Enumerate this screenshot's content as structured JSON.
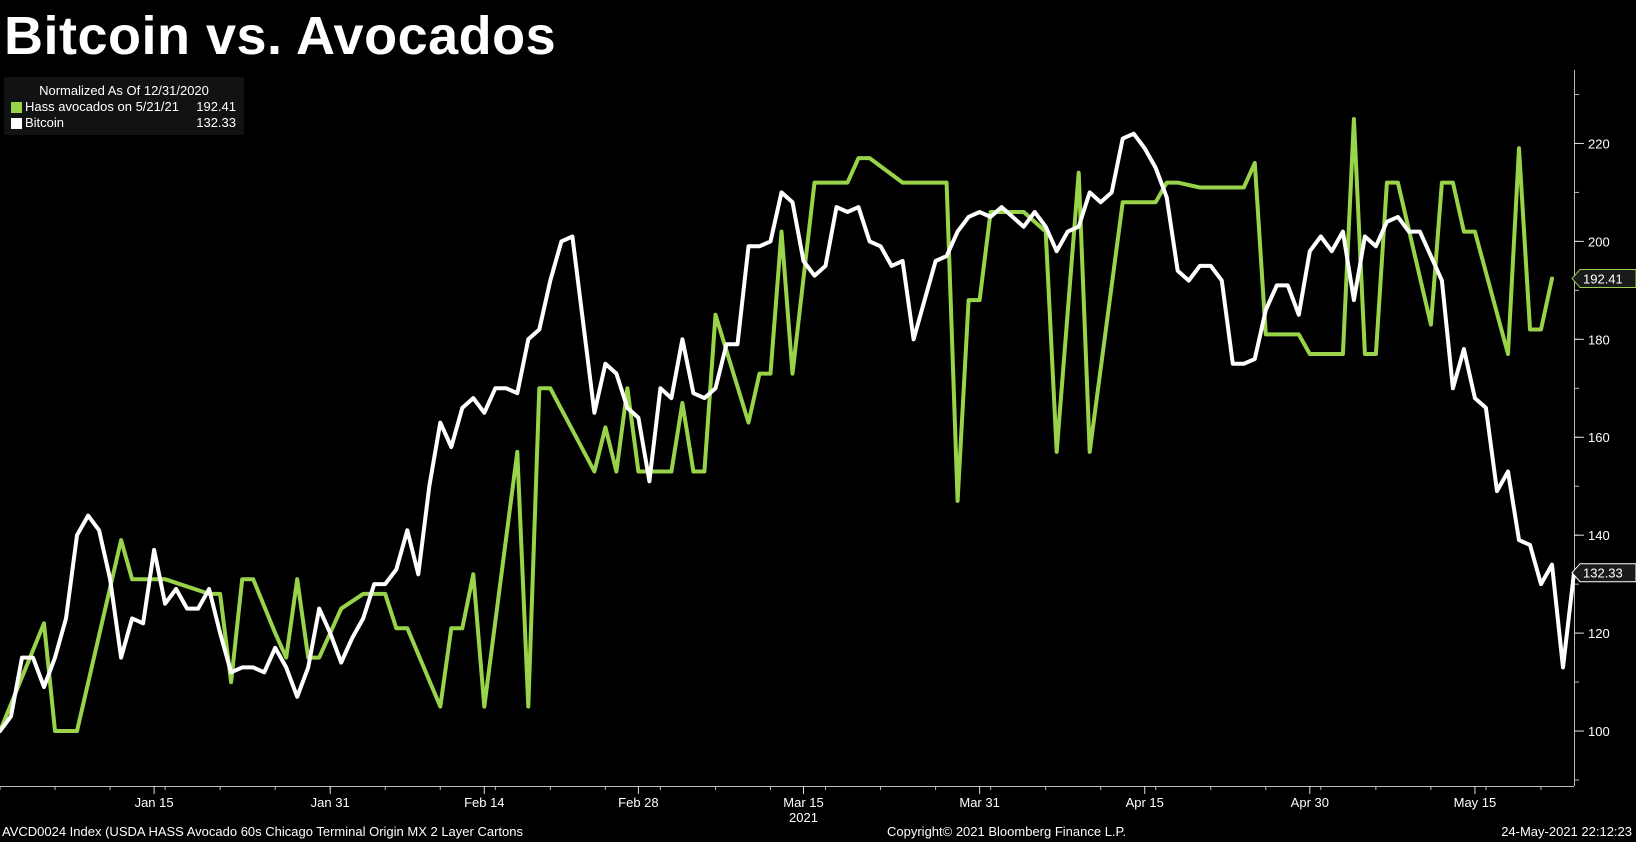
{
  "title": "Bitcoin vs. Avocados",
  "legend": {
    "header": "Normalized As Of 12/31/2020",
    "items": [
      {
        "name": "Hass avocados on 5/21/21",
        "value": "192.41",
        "color": "#98d34a"
      },
      {
        "name": "Bitcoin",
        "value": "132.33",
        "color": "#ffffff"
      }
    ]
  },
  "footer": {
    "source": "AVCD0024 Index (USDA HASS Avocado 60s Chicago Terminal Origin MX 2 Layer Cartons",
    "copyright": "Copyright© 2021 Bloomberg Finance L.P.",
    "timestamp": "24-May-2021 22:12:23"
  },
  "chart_data": {
    "type": "line",
    "xlim": [
      "2021-01-01",
      "2021-05-24"
    ],
    "ylim": [
      90,
      235
    ],
    "yticks": [
      100,
      120,
      140,
      160,
      180,
      200,
      220
    ],
    "xticks": [
      {
        "date": "2021-01-15",
        "label": "Jan 15"
      },
      {
        "date": "2021-01-31",
        "label": "Jan 31"
      },
      {
        "date": "2021-02-14",
        "label": "Feb 14"
      },
      {
        "date": "2021-02-28",
        "label": "Feb 28"
      },
      {
        "date": "2021-03-15",
        "label": "Mar 15"
      },
      {
        "date": "2021-03-31",
        "label": "Mar 31"
      },
      {
        "date": "2021-04-15",
        "label": "Apr 15"
      },
      {
        "date": "2021-04-30",
        "label": "Apr 30"
      },
      {
        "date": "2021-05-15",
        "label": "May 15"
      }
    ],
    "year_label": {
      "date": "2021-03-15",
      "label": "2021"
    },
    "series": [
      {
        "name": "Hass avocados on 5/21/21",
        "color": "#98d34a",
        "last_value": "192.41",
        "points": [
          [
            "2021-01-01",
            100
          ],
          [
            "2021-01-05",
            122
          ],
          [
            "2021-01-06",
            100
          ],
          [
            "2021-01-08",
            100
          ],
          [
            "2021-01-12",
            139
          ],
          [
            "2021-01-13",
            131
          ],
          [
            "2021-01-16",
            131
          ],
          [
            "2021-01-20",
            128
          ],
          [
            "2021-01-21",
            128
          ],
          [
            "2021-01-22",
            110
          ],
          [
            "2021-01-23",
            131
          ],
          [
            "2021-01-24",
            131
          ],
          [
            "2021-01-26",
            120
          ],
          [
            "2021-01-27",
            115
          ],
          [
            "2021-01-28",
            131
          ],
          [
            "2021-01-29",
            115
          ],
          [
            "2021-01-30",
            115
          ],
          [
            "2021-02-01",
            125
          ],
          [
            "2021-02-03",
            128
          ],
          [
            "2021-02-05",
            128
          ],
          [
            "2021-02-06",
            121
          ],
          [
            "2021-02-07",
            121
          ],
          [
            "2021-02-10",
            105
          ],
          [
            "2021-02-11",
            121
          ],
          [
            "2021-02-12",
            121
          ],
          [
            "2021-02-13",
            132
          ],
          [
            "2021-02-14",
            105
          ],
          [
            "2021-02-17",
            157
          ],
          [
            "2021-02-18",
            105
          ],
          [
            "2021-02-19",
            170
          ],
          [
            "2021-02-20",
            170
          ],
          [
            "2021-02-24",
            153
          ],
          [
            "2021-02-25",
            162
          ],
          [
            "2021-02-26",
            153
          ],
          [
            "2021-02-27",
            170
          ],
          [
            "2021-02-28",
            153
          ],
          [
            "2021-03-03",
            153
          ],
          [
            "2021-03-04",
            167
          ],
          [
            "2021-03-05",
            153
          ],
          [
            "2021-03-06",
            153
          ],
          [
            "2021-03-07",
            185
          ],
          [
            "2021-03-10",
            163
          ],
          [
            "2021-03-11",
            173
          ],
          [
            "2021-03-12",
            173
          ],
          [
            "2021-03-13",
            202
          ],
          [
            "2021-03-14",
            173
          ],
          [
            "2021-03-16",
            212
          ],
          [
            "2021-03-19",
            212
          ],
          [
            "2021-03-20",
            217
          ],
          [
            "2021-03-21",
            217
          ],
          [
            "2021-03-24",
            212
          ],
          [
            "2021-03-28",
            212
          ],
          [
            "2021-03-29",
            147
          ],
          [
            "2021-03-30",
            188
          ],
          [
            "2021-03-31",
            188
          ],
          [
            "2021-04-01",
            206
          ],
          [
            "2021-04-04",
            206
          ],
          [
            "2021-04-06",
            202
          ],
          [
            "2021-04-07",
            157
          ],
          [
            "2021-04-09",
            214
          ],
          [
            "2021-04-10",
            157
          ],
          [
            "2021-04-13",
            208
          ],
          [
            "2021-04-16",
            208
          ],
          [
            "2021-04-17",
            212
          ],
          [
            "2021-04-18",
            212
          ],
          [
            "2021-04-20",
            211
          ],
          [
            "2021-04-24",
            211
          ],
          [
            "2021-04-25",
            216
          ],
          [
            "2021-04-26",
            181
          ],
          [
            "2021-04-29",
            181
          ],
          [
            "2021-04-30",
            177
          ],
          [
            "2021-05-03",
            177
          ],
          [
            "2021-05-04",
            225
          ],
          [
            "2021-05-05",
            177
          ],
          [
            "2021-05-06",
            177
          ],
          [
            "2021-05-07",
            212
          ],
          [
            "2021-05-08",
            212
          ],
          [
            "2021-05-11",
            183
          ],
          [
            "2021-05-12",
            212
          ],
          [
            "2021-05-13",
            212
          ],
          [
            "2021-05-14",
            202
          ],
          [
            "2021-05-15",
            202
          ],
          [
            "2021-05-18",
            177
          ],
          [
            "2021-05-19",
            219
          ],
          [
            "2021-05-20",
            182
          ],
          [
            "2021-05-21",
            182
          ],
          [
            "2021-05-22",
            192.41
          ]
        ]
      },
      {
        "name": "Bitcoin",
        "color": "#ffffff",
        "last_value": "132.33",
        "points": [
          [
            "2021-01-01",
            100
          ],
          [
            "2021-01-02",
            103
          ],
          [
            "2021-01-03",
            115
          ],
          [
            "2021-01-04",
            115
          ],
          [
            "2021-01-05",
            109
          ],
          [
            "2021-01-06",
            115
          ],
          [
            "2021-01-07",
            123
          ],
          [
            "2021-01-08",
            140
          ],
          [
            "2021-01-09",
            144
          ],
          [
            "2021-01-10",
            141
          ],
          [
            "2021-01-11",
            131
          ],
          [
            "2021-01-12",
            115
          ],
          [
            "2021-01-13",
            123
          ],
          [
            "2021-01-14",
            122
          ],
          [
            "2021-01-15",
            137
          ],
          [
            "2021-01-16",
            126
          ],
          [
            "2021-01-17",
            129
          ],
          [
            "2021-01-18",
            125
          ],
          [
            "2021-01-19",
            125
          ],
          [
            "2021-01-20",
            129
          ],
          [
            "2021-01-21",
            120
          ],
          [
            "2021-01-22",
            112
          ],
          [
            "2021-01-23",
            113
          ],
          [
            "2021-01-24",
            113
          ],
          [
            "2021-01-25",
            112
          ],
          [
            "2021-01-26",
            117
          ],
          [
            "2021-01-27",
            113
          ],
          [
            "2021-01-28",
            107
          ],
          [
            "2021-01-29",
            113
          ],
          [
            "2021-01-30",
            125
          ],
          [
            "2021-01-31",
            120
          ],
          [
            "2021-02-01",
            114
          ],
          [
            "2021-02-02",
            119
          ],
          [
            "2021-02-03",
            123
          ],
          [
            "2021-02-04",
            130
          ],
          [
            "2021-02-05",
            130
          ],
          [
            "2021-02-06",
            133
          ],
          [
            "2021-02-07",
            141
          ],
          [
            "2021-02-08",
            132
          ],
          [
            "2021-02-09",
            150
          ],
          [
            "2021-02-10",
            163
          ],
          [
            "2021-02-11",
            158
          ],
          [
            "2021-02-12",
            166
          ],
          [
            "2021-02-13",
            168
          ],
          [
            "2021-02-14",
            165
          ],
          [
            "2021-02-15",
            170
          ],
          [
            "2021-02-16",
            170
          ],
          [
            "2021-02-17",
            169
          ],
          [
            "2021-02-18",
            180
          ],
          [
            "2021-02-19",
            182
          ],
          [
            "2021-02-20",
            192
          ],
          [
            "2021-02-21",
            200
          ],
          [
            "2021-02-22",
            201
          ],
          [
            "2021-02-23",
            183
          ],
          [
            "2021-02-24",
            165
          ],
          [
            "2021-02-25",
            175
          ],
          [
            "2021-02-26",
            173
          ],
          [
            "2021-02-27",
            166
          ],
          [
            "2021-02-28",
            164
          ],
          [
            "2021-03-01",
            151
          ],
          [
            "2021-03-02",
            170
          ],
          [
            "2021-03-03",
            168
          ],
          [
            "2021-03-04",
            180
          ],
          [
            "2021-03-05",
            169
          ],
          [
            "2021-03-06",
            168
          ],
          [
            "2021-03-07",
            170
          ],
          [
            "2021-03-08",
            179
          ],
          [
            "2021-03-09",
            179
          ],
          [
            "2021-03-10",
            199
          ],
          [
            "2021-03-11",
            199
          ],
          [
            "2021-03-12",
            200
          ],
          [
            "2021-03-13",
            210
          ],
          [
            "2021-03-14",
            208
          ],
          [
            "2021-03-15",
            196
          ],
          [
            "2021-03-16",
            193
          ],
          [
            "2021-03-17",
            195
          ],
          [
            "2021-03-18",
            207
          ],
          [
            "2021-03-19",
            206
          ],
          [
            "2021-03-20",
            207
          ],
          [
            "2021-03-21",
            200
          ],
          [
            "2021-03-22",
            199
          ],
          [
            "2021-03-23",
            195
          ],
          [
            "2021-03-24",
            196
          ],
          [
            "2021-03-25",
            180
          ],
          [
            "2021-03-26",
            188
          ],
          [
            "2021-03-27",
            196
          ],
          [
            "2021-03-28",
            197
          ],
          [
            "2021-03-29",
            202
          ],
          [
            "2021-03-30",
            205
          ],
          [
            "2021-03-31",
            206
          ],
          [
            "2021-04-01",
            205
          ],
          [
            "2021-04-02",
            207
          ],
          [
            "2021-04-03",
            205
          ],
          [
            "2021-04-04",
            203
          ],
          [
            "2021-04-05",
            206
          ],
          [
            "2021-04-06",
            203
          ],
          [
            "2021-04-07",
            198
          ],
          [
            "2021-04-08",
            202
          ],
          [
            "2021-04-09",
            203
          ],
          [
            "2021-04-10",
            210
          ],
          [
            "2021-04-11",
            208
          ],
          [
            "2021-04-12",
            210
          ],
          [
            "2021-04-13",
            221
          ],
          [
            "2021-04-14",
            222
          ],
          [
            "2021-04-15",
            219
          ],
          [
            "2021-04-16",
            215
          ],
          [
            "2021-04-17",
            209
          ],
          [
            "2021-04-18",
            194
          ],
          [
            "2021-04-19",
            192
          ],
          [
            "2021-04-20",
            195
          ],
          [
            "2021-04-21",
            195
          ],
          [
            "2021-04-22",
            192
          ],
          [
            "2021-04-23",
            175
          ],
          [
            "2021-04-24",
            175
          ],
          [
            "2021-04-25",
            176
          ],
          [
            "2021-04-26",
            186
          ],
          [
            "2021-04-27",
            191
          ],
          [
            "2021-04-28",
            191
          ],
          [
            "2021-04-29",
            185
          ],
          [
            "2021-04-30",
            198
          ],
          [
            "2021-05-01",
            201
          ],
          [
            "2021-05-02",
            198
          ],
          [
            "2021-05-03",
            202
          ],
          [
            "2021-05-04",
            188
          ],
          [
            "2021-05-05",
            201
          ],
          [
            "2021-05-06",
            199
          ],
          [
            "2021-05-07",
            204
          ],
          [
            "2021-05-08",
            205
          ],
          [
            "2021-05-09",
            202
          ],
          [
            "2021-05-10",
            202
          ],
          [
            "2021-05-11",
            197
          ],
          [
            "2021-05-12",
            192
          ],
          [
            "2021-05-13",
            170
          ],
          [
            "2021-05-14",
            178
          ],
          [
            "2021-05-15",
            168
          ],
          [
            "2021-05-16",
            166
          ],
          [
            "2021-05-17",
            149
          ],
          [
            "2021-05-18",
            153
          ],
          [
            "2021-05-19",
            139
          ],
          [
            "2021-05-20",
            138
          ],
          [
            "2021-05-21",
            130
          ],
          [
            "2021-05-22",
            134
          ],
          [
            "2021-05-23",
            113
          ],
          [
            "2021-05-24",
            132.33
          ]
        ]
      }
    ]
  }
}
